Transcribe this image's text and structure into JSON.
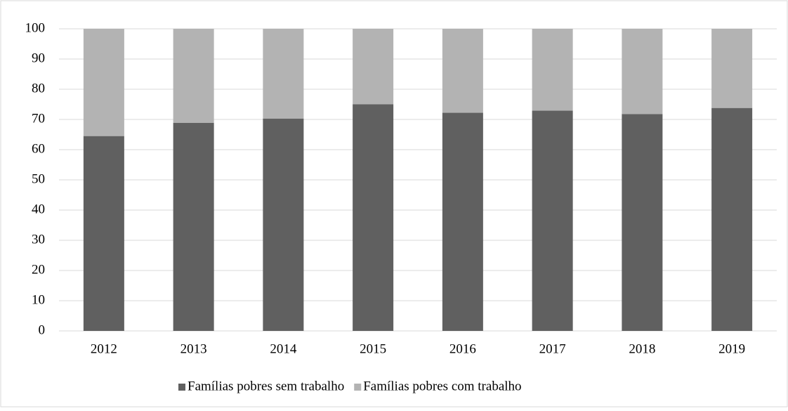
{
  "chart_data": {
    "type": "bar",
    "stacked": true,
    "categories": [
      "2012",
      "2013",
      "2014",
      "2015",
      "2016",
      "2017",
      "2018",
      "2019"
    ],
    "series": [
      {
        "name": "Famílias pobres sem trabalho",
        "color": "#606060",
        "values": [
          64.5,
          68.9,
          70.3,
          75.0,
          72.2,
          72.9,
          71.8,
          73.8
        ]
      },
      {
        "name": "Famílias pobres com trabalho",
        "color": "#b3b3b3",
        "values": [
          35.5,
          31.1,
          29.7,
          25.0,
          27.8,
          27.1,
          28.2,
          26.2
        ]
      }
    ],
    "ylim": [
      0,
      100
    ],
    "yticks": [
      0,
      10,
      20,
      30,
      40,
      50,
      60,
      70,
      80,
      90,
      100
    ],
    "grid": true,
    "legend": "bottom"
  }
}
